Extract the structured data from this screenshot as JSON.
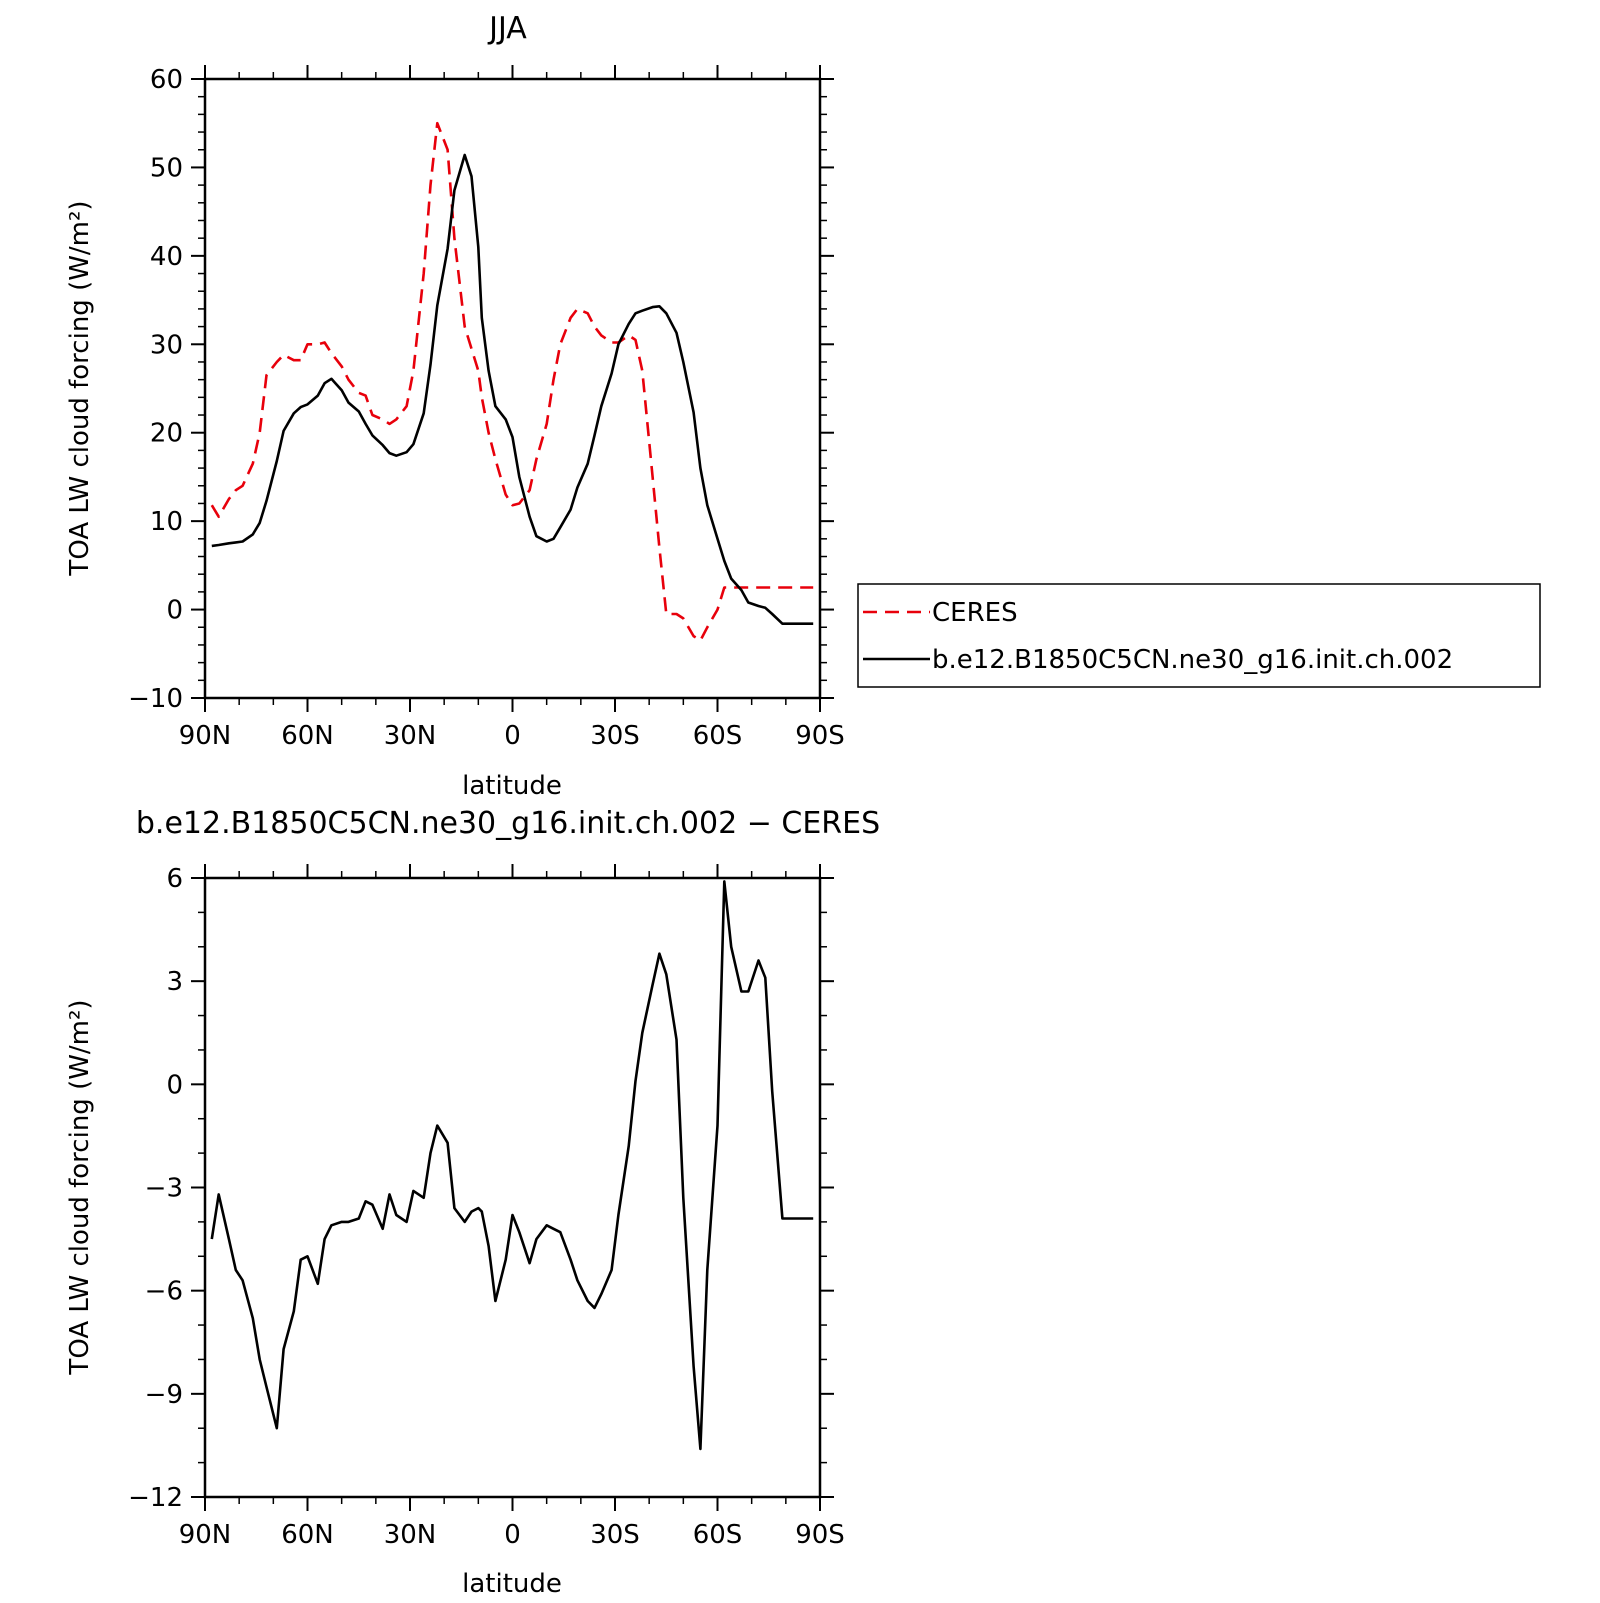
{
  "chart_data": [
    {
      "type": "line",
      "title": "JJA",
      "xlabel": "latitude",
      "ylabel": "TOA LW cloud forcing (W/m²)",
      "xlim": [
        90,
        -90
      ],
      "ylim": [
        -10,
        60
      ],
      "xticks": [
        90,
        60,
        30,
        0,
        -30,
        -60,
        -90
      ],
      "xticklabels": [
        "90N",
        "60N",
        "30N",
        "0",
        "30S",
        "60S",
        "90S"
      ],
      "yticks": [
        -10,
        0,
        10,
        20,
        30,
        40,
        50,
        60
      ],
      "yticklabels": [
        "−10",
        "0",
        "10",
        "20",
        "30",
        "40",
        "50",
        "60"
      ],
      "grid": false,
      "legend_position": "right",
      "series": [
        {
          "name": "CERES",
          "color": "#e8000b",
          "dash": "dashed",
          "x": [
            88,
            86,
            83,
            81,
            79,
            76,
            74,
            72,
            69,
            67,
            64,
            62,
            60,
            57,
            55,
            53,
            50,
            48,
            45,
            43,
            41,
            38,
            36,
            34,
            31,
            29,
            26,
            24,
            22,
            19,
            17,
            14,
            12,
            10,
            9,
            7,
            5,
            2,
            0,
            -2,
            -5,
            -7,
            -10,
            -12,
            -14,
            -17,
            -19,
            -22,
            -24,
            -26,
            -29,
            -31,
            -34,
            -36,
            -38,
            -41,
            -43,
            -45,
            -48,
            -50,
            -53,
            -55,
            -57,
            -60,
            -62,
            -64,
            -67,
            -69,
            -72,
            -74,
            -76,
            -79,
            -81,
            -83,
            -86,
            -88
          ],
          "y": [
            11.8,
            10.5,
            12.5,
            13.5,
            14.0,
            16.5,
            20.0,
            26.5,
            28.0,
            28.8,
            28.2,
            28.2,
            30.0,
            30.0,
            30.2,
            29.0,
            27.5,
            26.0,
            24.5,
            24.2,
            22.0,
            21.5,
            21.0,
            21.5,
            23.0,
            27.0,
            38.0,
            48.0,
            55.0,
            52.0,
            42.0,
            32.0,
            29.5,
            27.0,
            24.0,
            20.0,
            17.0,
            13.0,
            11.8,
            12.0,
            13.5,
            17.0,
            21.0,
            26.0,
            30.0,
            33.0,
            34.0,
            33.5,
            32.0,
            31.0,
            30.2,
            30.2,
            31.0,
            30.5,
            27.0,
            15.0,
            7.0,
            -0.5,
            -0.5,
            -1.0,
            -3.0,
            -3.5,
            -2.0,
            0.0,
            2.5,
            2.5,
            2.5,
            2.5,
            2.5,
            2.5,
            2.5,
            2.5,
            2.5,
            2.5,
            2.5,
            2.5
          ]
        },
        {
          "name": "b.e12.B1850C5CN.ne30_g16.init.ch.002",
          "color": "#000000",
          "dash": "solid",
          "x": [
            88,
            86,
            83,
            81,
            79,
            76,
            74,
            72,
            69,
            67,
            64,
            62,
            60,
            57,
            55,
            53,
            50,
            48,
            45,
            43,
            41,
            38,
            36,
            34,
            31,
            29,
            26,
            24,
            22,
            19,
            17,
            14,
            12,
            10,
            9,
            7,
            5,
            2,
            0,
            -2,
            -5,
            -7,
            -10,
            -12,
            -14,
            -17,
            -19,
            -22,
            -24,
            -26,
            -29,
            -31,
            -34,
            -36,
            -38,
            -41,
            -43,
            -45,
            -48,
            -50,
            -53,
            -55,
            -57,
            -60,
            -62,
            -64,
            -67,
            -69,
            -72,
            -74,
            -76,
            -79,
            -81,
            -83,
            -86,
            -88
          ],
          "y": [
            7.2,
            7.3,
            7.5,
            7.6,
            7.7,
            8.5,
            9.8,
            12.3,
            16.8,
            20.2,
            22.2,
            22.9,
            23.2,
            24.2,
            25.6,
            26.1,
            24.8,
            23.4,
            22.4,
            21.0,
            19.7,
            18.6,
            17.7,
            17.4,
            17.8,
            18.7,
            22.2,
            27.7,
            34.4,
            40.8,
            47.4,
            51.4,
            49.0,
            41.0,
            33.0,
            27.0,
            23.0,
            21.5,
            19.5,
            15.0,
            10.5,
            8.3,
            7.7,
            8.0,
            9.3,
            11.3,
            13.8,
            16.5,
            19.7,
            23.0,
            26.7,
            30.0,
            32.3,
            33.5,
            33.8,
            34.2,
            34.3,
            33.5,
            31.3,
            28.0,
            22.3,
            16.0,
            11.8,
            8.0,
            5.5,
            3.5,
            2.2,
            0.8,
            0.4,
            0.2,
            -0.5,
            -1.6,
            -1.6,
            -1.6,
            -1.6,
            -1.6
          ]
        }
      ]
    },
    {
      "type": "line",
      "title": "b.e12.B1850C5CN.ne30_g16.init.ch.002 − CERES",
      "xlabel": "latitude",
      "ylabel": "TOA LW cloud forcing (W/m²)",
      "xlim": [
        90,
        -90
      ],
      "ylim": [
        -12,
        6
      ],
      "xticks": [
        90,
        60,
        30,
        0,
        -30,
        -60,
        -90
      ],
      "xticklabels": [
        "90N",
        "60N",
        "30N",
        "0",
        "30S",
        "60S",
        "90S"
      ],
      "yticks": [
        -12,
        -9,
        -6,
        -3,
        0,
        3,
        6
      ],
      "yticklabels": [
        "−12",
        "−9",
        "−6",
        "−3",
        "0",
        "3",
        "6"
      ],
      "grid": false,
      "series": [
        {
          "color": "#000000",
          "dash": "solid",
          "x": [
            88,
            86,
            83,
            81,
            79,
            76,
            74,
            72,
            69,
            67,
            64,
            62,
            60,
            57,
            55,
            53,
            50,
            48,
            45,
            43,
            41,
            38,
            36,
            34,
            31,
            29,
            26,
            24,
            22,
            19,
            17,
            14,
            12,
            10,
            9,
            7,
            5,
            2,
            0,
            -2,
            -5,
            -7,
            -10,
            -12,
            -14,
            -17,
            -19,
            -22,
            -24,
            -26,
            -29,
            -31,
            -34,
            -36,
            -38,
            -41,
            -43,
            -45,
            -48,
            -50,
            -53,
            -55,
            -57,
            -60,
            -62,
            -64,
            -67,
            -69,
            -72,
            -74,
            -76,
            -79,
            -81,
            -83,
            -86,
            -88
          ],
          "y": [
            -4.5,
            -3.2,
            -4.5,
            -5.4,
            -5.7,
            -6.8,
            -8.0,
            -8.8,
            -10.0,
            -7.7,
            -6.6,
            -5.1,
            -5.0,
            -5.8,
            -4.5,
            -4.1,
            -4.0,
            -4.0,
            -3.9,
            -3.4,
            -3.5,
            -4.2,
            -3.2,
            -3.8,
            -4.0,
            -3.1,
            -3.3,
            -2.0,
            -1.2,
            -1.7,
            -3.6,
            -4.0,
            -3.7,
            -3.6,
            -3.7,
            -4.7,
            -6.3,
            -5.1,
            -3.8,
            -4.3,
            -5.2,
            -4.5,
            -4.1,
            -4.2,
            -4.3,
            -5.1,
            -5.7,
            -6.3,
            -6.5,
            -6.1,
            -5.4,
            -3.8,
            -1.8,
            0.1,
            1.5,
            2.9,
            3.8,
            3.2,
            1.3,
            -3.3,
            -8.2,
            -10.6,
            -5.4,
            -1.2,
            5.9,
            4.0,
            2.7,
            2.7,
            3.6,
            3.1,
            -0.2,
            -3.9,
            -3.9,
            -3.9,
            -3.9,
            -3.9
          ]
        }
      ]
    }
  ]
}
